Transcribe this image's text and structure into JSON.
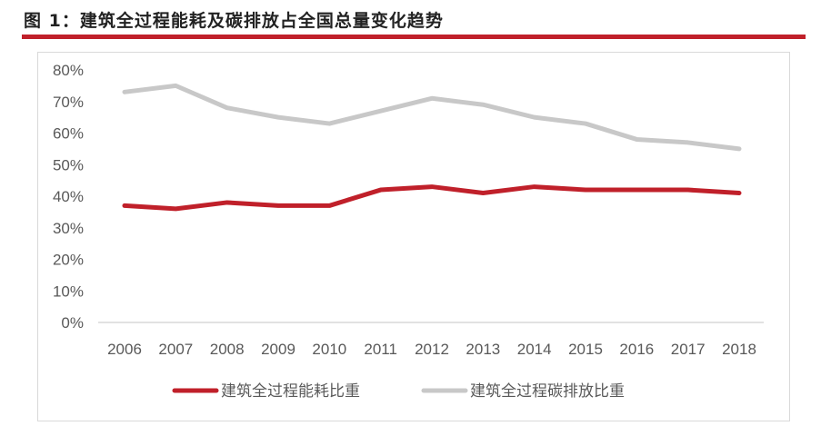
{
  "title": "图 1：建筑全过程能耗及碳排放占全国总量变化趋势",
  "colors": {
    "accent": "#c0202a",
    "energy": "#c0202a",
    "carbon": "#c8c8c8"
  },
  "chart_data": {
    "type": "line",
    "title": "",
    "xlabel": "",
    "ylabel": "",
    "categories": [
      "2006",
      "2007",
      "2008",
      "2009",
      "2010",
      "2011",
      "2012",
      "2013",
      "2014",
      "2015",
      "2016",
      "2017",
      "2018"
    ],
    "ylim": [
      0,
      80
    ],
    "yticks": [
      "0%",
      "10%",
      "20%",
      "30%",
      "40%",
      "50%",
      "60%",
      "70%",
      "80%"
    ],
    "grid": false,
    "legend": "bottom",
    "series": [
      {
        "name": "建筑全过程能耗比重",
        "color": "#c0202a",
        "values": [
          37,
          36,
          38,
          37,
          37,
          42,
          43,
          41,
          43,
          42,
          42,
          42,
          41
        ]
      },
      {
        "name": "建筑全过程碳排放比重",
        "color": "#c8c8c8",
        "values": [
          73,
          75,
          68,
          65,
          63,
          67,
          71,
          69,
          65,
          63,
          58,
          57,
          55
        ]
      }
    ]
  }
}
